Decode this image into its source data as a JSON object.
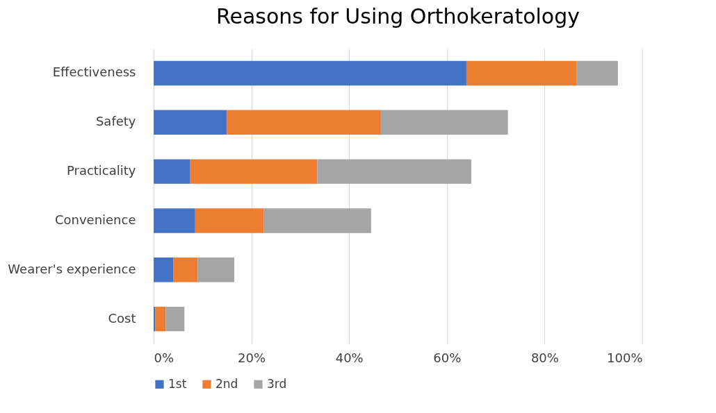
{
  "chart_data": {
    "type": "bar",
    "title": "Reasons for Using Orthokeratology",
    "orientation": "horizontal",
    "stacked": true,
    "categories": [
      "Effectiveness",
      "Safety",
      "Practicality",
      "Convenience",
      "Wearer's experience",
      "Cost"
    ],
    "series": [
      {
        "name": "1st",
        "color": "#4472c4",
        "values": [
          64,
          15,
          7.5,
          8.5,
          4,
          0.3
        ]
      },
      {
        "name": "2nd",
        "color": "#ed7d31",
        "values": [
          22.5,
          31.5,
          26,
          14,
          5,
          2.2
        ]
      },
      {
        "name": "3rd",
        "color": "#a5a5a5",
        "values": [
          8.5,
          26,
          31.5,
          22,
          7.5,
          3.8
        ]
      }
    ],
    "xlim": [
      0,
      100
    ],
    "xticks": [
      {
        "value": 0,
        "label": "0%"
      },
      {
        "value": 20,
        "label": "20%"
      },
      {
        "value": 40,
        "label": "40%"
      },
      {
        "value": 60,
        "label": "60%"
      },
      {
        "value": 80,
        "label": "80%"
      },
      {
        "value": 100,
        "label": "100%"
      }
    ],
    "grid": "x",
    "legend": "bottom"
  }
}
